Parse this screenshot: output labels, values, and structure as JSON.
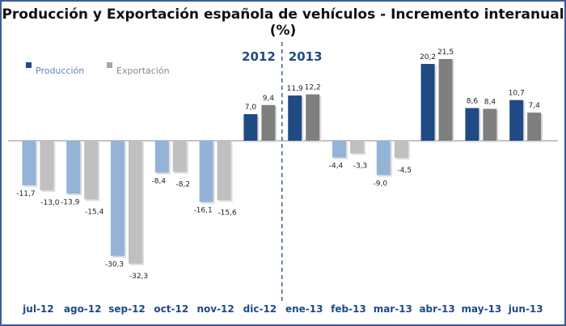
{
  "chart_data": {
    "type": "bar",
    "title": "Producción y Exportación española de vehículos - Incremento interanual (%)",
    "categories": [
      "jul-12",
      "ago-12",
      "sep-12",
      "oct-12",
      "nov-12",
      "dic-12",
      "ene-13",
      "feb-13",
      "mar-13",
      "abr-13",
      "may-13",
      "jun-13"
    ],
    "series": [
      {
        "name": "Producción",
        "values": [
          -11.7,
          -13.9,
          -30.3,
          -8.4,
          -16.1,
          7.0,
          11.9,
          -4.4,
          -9.0,
          20.2,
          8.6,
          10.7
        ],
        "color_positive": "#1f4a84",
        "color_negative": "#95b3d7"
      },
      {
        "name": "Exportación",
        "values": [
          -13.0,
          -15.4,
          -32.3,
          -8.2,
          -15.6,
          9.4,
          12.2,
          -3.3,
          -4.5,
          21.5,
          8.4,
          7.4
        ],
        "color_positive": "#7f7f7f",
        "color_negative": "#c0c0c0"
      }
    ],
    "data_labels": [
      [
        "-11,7",
        "-13,9",
        "-30,3",
        "-8,4",
        "-16,1",
        "7,0",
        "11,9",
        "-4,4",
        "-9,0",
        "20,2",
        "8,6",
        "10,7"
      ],
      [
        "-13,0",
        "-15,4",
        "-32,3",
        "-8,2",
        "-15,6",
        "9,4",
        "12,2",
        "-3,3",
        "-4,5",
        "21,5",
        "8,4",
        "7,4"
      ]
    ],
    "annotations": [
      "2012",
      "2013"
    ],
    "legend": "top-left",
    "grid": false,
    "category_label_color": "#1f4a84"
  }
}
